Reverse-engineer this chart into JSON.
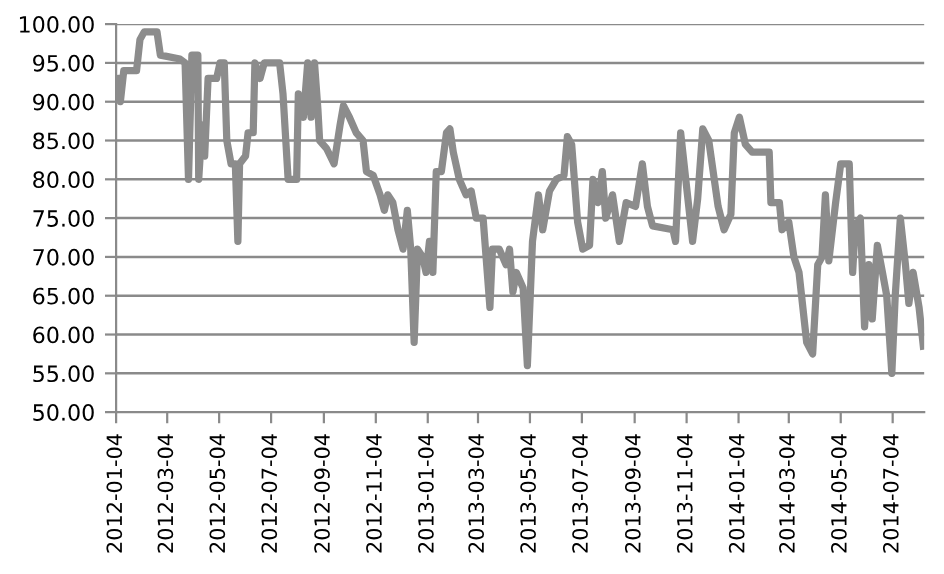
{
  "chart_data": {
    "type": "line",
    "x": [
      "2012-01-06",
      "2012-01-09",
      "2012-01-13",
      "2012-01-28",
      "2012-02-01",
      "2012-02-06",
      "2012-02-21",
      "2012-02-25",
      "2012-03-19",
      "2012-03-25",
      "2012-03-29",
      "2012-04-02",
      "2012-04-09",
      "2012-04-10",
      "2012-04-14",
      "2012-04-17",
      "2012-04-21",
      "2012-05-01",
      "2012-05-05",
      "2012-05-10",
      "2012-05-13",
      "2012-05-18",
      "2012-05-23",
      "2012-05-26",
      "2012-05-28",
      "2012-06-04",
      "2012-06-07",
      "2012-06-13",
      "2012-06-15",
      "2012-06-21",
      "2012-06-26",
      "2012-07-14",
      "2012-07-18",
      "2012-07-24",
      "2012-08-03",
      "2012-08-05",
      "2012-08-11",
      "2012-08-16",
      "2012-08-20",
      "2012-08-24",
      "2012-08-28",
      "2012-08-30",
      "2012-09-07",
      "2012-09-16",
      "2012-09-23",
      "2012-09-27",
      "2012-10-04",
      "2012-10-12",
      "2012-10-20",
      "2012-10-24",
      "2012-11-01",
      "2012-11-09",
      "2012-11-14",
      "2012-11-18",
      "2012-11-24",
      "2012-11-30",
      "2012-12-06",
      "2012-12-11",
      "2012-12-15",
      "2012-12-19",
      "2012-12-23",
      "2012-12-29",
      "2013-01-02",
      "2013-01-06",
      "2013-01-10",
      "2013-01-14",
      "2013-01-20",
      "2013-01-26",
      "2013-01-30",
      "2013-02-03",
      "2013-02-10",
      "2013-02-18",
      "2013-02-24",
      "2013-03-02",
      "2013-03-10",
      "2013-03-18",
      "2013-03-21",
      "2013-03-29",
      "2013-04-06",
      "2013-04-10",
      "2013-04-14",
      "2013-04-18",
      "2013-04-26",
      "2013-05-01",
      "2013-05-07",
      "2013-05-14",
      "2013-05-19",
      "2013-05-27",
      "2013-06-04",
      "2013-06-13",
      "2013-06-17",
      "2013-06-22",
      "2013-06-29",
      "2013-07-05",
      "2013-07-13",
      "2013-07-17",
      "2013-07-23",
      "2013-07-28",
      "2013-08-01",
      "2013-08-09",
      "2013-08-17",
      "2013-08-25",
      "2013-09-05",
      "2013-09-13",
      "2013-09-19",
      "2013-09-25",
      "2013-10-19",
      "2013-10-22",
      "2013-10-28",
      "2013-11-03",
      "2013-11-11",
      "2013-11-17",
      "2013-11-23",
      "2013-11-30",
      "2013-12-11",
      "2013-12-18",
      "2013-12-26",
      "2013-12-30",
      "2014-01-05",
      "2014-01-12",
      "2014-01-20",
      "2014-02-09",
      "2014-02-11",
      "2014-02-21",
      "2014-02-24",
      "2014-03-04",
      "2014-03-10",
      "2014-03-16",
      "2014-03-20",
      "2014-03-25",
      "2014-04-01",
      "2014-04-07",
      "2014-04-12",
      "2014-04-16",
      "2014-04-20",
      "2014-04-28",
      "2014-05-04",
      "2014-05-14",
      "2014-05-18",
      "2014-05-21",
      "2014-05-27",
      "2014-06-01",
      "2014-06-06",
      "2014-06-10",
      "2014-06-16",
      "2014-06-22",
      "2014-06-27",
      "2014-07-03",
      "2014-07-07",
      "2014-07-13",
      "2014-07-19",
      "2014-07-23",
      "2014-07-28",
      "2014-08-04",
      "2014-08-09"
    ],
    "series": [
      {
        "color": "#8c8c8c",
        "values": [
          93,
          90,
          94,
          94,
          98,
          99,
          99,
          96,
          95.5,
          95,
          80,
          96,
          96,
          80,
          87,
          83,
          93,
          93,
          95,
          95,
          85,
          82,
          82,
          72,
          82,
          83,
          86,
          86,
          95,
          93,
          95,
          95,
          91,
          80,
          80,
          91,
          88,
          95,
          88,
          95,
          89,
          85,
          84,
          82,
          87,
          89.5,
          88,
          86,
          85,
          81,
          80.5,
          78,
          76,
          78,
          77,
          73.5,
          71,
          76,
          71,
          59,
          71,
          70,
          68,
          72,
          68,
          81,
          81,
          86,
          86.5,
          83.5,
          80,
          78,
          78.5,
          75,
          75,
          63.5,
          71,
          71,
          69,
          71,
          65.5,
          68,
          66,
          56,
          72,
          78,
          73.5,
          78.5,
          80,
          80.5,
          85.5,
          84.5,
          74.5,
          71,
          71.5,
          80,
          77,
          81,
          75,
          78,
          72,
          77,
          76.5,
          82,
          76.5,
          74,
          73.5,
          72,
          86,
          80,
          72,
          77.5,
          86.5,
          85,
          76.5,
          73.5,
          75.5,
          86,
          88,
          84.5,
          83.5,
          83.5,
          77,
          77,
          73.5,
          74.5,
          70,
          68,
          64,
          59,
          57.5,
          69,
          70,
          78,
          69.5,
          77,
          82,
          82,
          68,
          74,
          75,
          61,
          69,
          62,
          71.5,
          68,
          65,
          55,
          65,
          75,
          69,
          64,
          68,
          63.5,
          58.5
        ]
      }
    ],
    "xlim": [
      "2012-01-04",
      "2014-08-10"
    ],
    "xticks": [
      "2012-01-04",
      "2012-03-04",
      "2012-05-04",
      "2012-07-04",
      "2012-09-04",
      "2012-11-04",
      "2013-01-04",
      "2013-03-04",
      "2013-05-04",
      "2013-07-04",
      "2013-09-04",
      "2013-11-04",
      "2014-01-04",
      "2014-03-04",
      "2014-05-04",
      "2014-07-04"
    ],
    "ylim": [
      50,
      100
    ],
    "yticks": [
      {
        "value": 50,
        "label": "50.00"
      },
      {
        "value": 55,
        "label": "55.00"
      },
      {
        "value": 60,
        "label": "60.00"
      },
      {
        "value": 65,
        "label": "65.00"
      },
      {
        "value": 70,
        "label": "70.00"
      },
      {
        "value": 75,
        "label": "75.00"
      },
      {
        "value": 80,
        "label": "80.00"
      },
      {
        "value": 85,
        "label": "85.00"
      },
      {
        "value": 90,
        "label": "90.00"
      },
      {
        "value": 95,
        "label": "95.00"
      },
      {
        "value": 100,
        "label": "100.00"
      }
    ],
    "grid": "y",
    "marker": "none",
    "line_style": "solid"
  }
}
